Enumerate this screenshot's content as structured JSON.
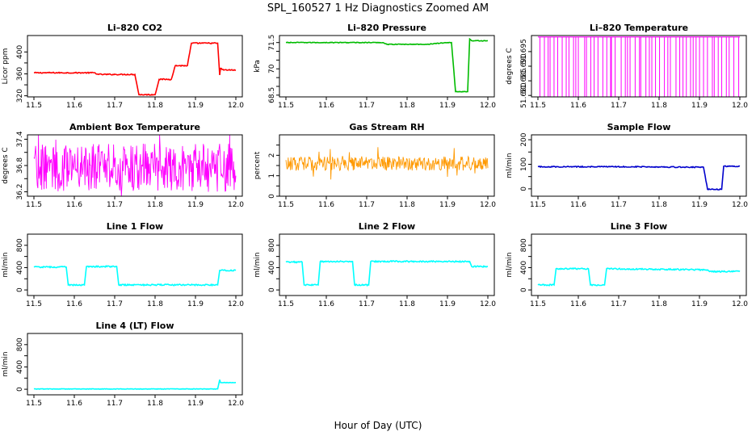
{
  "figure": {
    "title": "SPL_160527  1 Hz Diagnostics Zoomed AM",
    "xlabel": "Hour of Day (UTC)"
  },
  "chart_data": [
    {
      "type": "line",
      "title": "Li–820 CO2",
      "xlabel": "",
      "ylabel": "Licor ppm",
      "xlim": [
        11.5,
        12.0
      ],
      "ylim": [
        318,
        430
      ],
      "xticks": [
        "11.5",
        "11.6",
        "11.7",
        "11.8",
        "11.9",
        "12.0"
      ],
      "yticks": [
        320,
        360,
        400
      ],
      "yticks_minor": [
        340,
        380
      ],
      "color": "#ff0000",
      "noise": 1,
      "series": [
        {
          "x": [
            11.5,
            11.65,
            11.66,
            11.75,
            11.76,
            11.8,
            11.81,
            11.84,
            11.85,
            11.88,
            11.89,
            11.955,
            11.96,
            11.962,
            11.97,
            12.0
          ],
          "y": [
            362,
            362,
            359,
            359,
            322,
            322,
            350,
            350,
            375,
            375,
            416,
            416,
            358,
            370,
            367,
            367
          ]
        }
      ]
    },
    {
      "type": "line",
      "title": "Li–820 Pressure",
      "xlabel": "",
      "ylabel": "kPa",
      "xlim": [
        11.5,
        12.0
      ],
      "ylim": [
        68.4,
        71.9
      ],
      "xticks": [
        "11.5",
        "11.6",
        "11.7",
        "11.8",
        "11.9",
        "12.0"
      ],
      "yticks": [
        68.5,
        70.0,
        71.5
      ],
      "yticks_minor": [
        69.0,
        69.5,
        70.5,
        71.0
      ],
      "color": "#00bb00",
      "noise": 0.02,
      "series": [
        {
          "x": [
            11.5,
            11.74,
            11.75,
            11.85,
            11.9,
            11.91,
            11.92,
            11.95,
            11.955,
            11.96,
            12.0
          ],
          "y": [
            71.5,
            71.5,
            71.4,
            71.4,
            71.5,
            71.5,
            68.7,
            68.7,
            71.7,
            71.6,
            71.6
          ]
        }
      ]
    },
    {
      "type": "line",
      "title": "Li–820 Temperature",
      "xlabel": "",
      "ylabel": "degrees C",
      "xlim": [
        11.5,
        12.0
      ],
      "ylim": [
        51.6795,
        51.7005
      ],
      "xticks": [
        "11.5",
        "11.6",
        "11.7",
        "11.8",
        "11.9",
        "12.0"
      ],
      "yticks": [
        51.68,
        51.685,
        51.69,
        51.695
      ],
      "yticks_minor": [],
      "color": "#ff00ff",
      "pattern": "spikes",
      "base": 51.7,
      "low": 51.6795,
      "count": 55
    },
    {
      "type": "line",
      "title": "Ambient Box Temperature",
      "xlabel": "",
      "ylabel": "degrees C",
      "xlim": [
        11.5,
        12.0
      ],
      "ylim": [
        36.1,
        37.5
      ],
      "xticks": [
        "11.5",
        "11.6",
        "11.7",
        "11.8",
        "11.9",
        "12.0"
      ],
      "yticks": [
        36.2,
        36.8,
        37.4
      ],
      "yticks_minor": [
        36.5,
        37.1
      ],
      "color": "#ff00ff",
      "pattern": "band",
      "center": 36.75,
      "spread": 0.55
    },
    {
      "type": "line",
      "title": "Gas Stream RH",
      "xlabel": "",
      "ylabel": "percent",
      "xlim": [
        11.5,
        12.0
      ],
      "ylim": [
        0,
        3
      ],
      "xticks": [
        "11.5",
        "11.6",
        "11.7",
        "11.8",
        "11.9",
        "12.0"
      ],
      "yticks": [
        0.0,
        1.0,
        2.0
      ],
      "yticks_minor": [
        0.5,
        1.5,
        2.5
      ],
      "color": "#ff9900",
      "pattern": "band",
      "center": 1.6,
      "spread": 0.35
    },
    {
      "type": "line",
      "title": "Sample Flow",
      "xlabel": "",
      "ylabel": "ml/min",
      "xlim": [
        11.5,
        12.0
      ],
      "ylim": [
        -30,
        220
      ],
      "xticks": [
        "11.5",
        "11.6",
        "11.7",
        "11.8",
        "11.9",
        "12.0"
      ],
      "yticks": [
        0,
        100,
        200
      ],
      "yticks_minor": [
        50,
        150
      ],
      "color": "#0000cc",
      "noise": 2,
      "series": [
        {
          "x": [
            11.5,
            11.75,
            11.9,
            11.91,
            11.92,
            11.955,
            11.96,
            12.0
          ],
          "y": [
            90,
            90,
            88,
            88,
            -2,
            -2,
            92,
            92
          ]
        }
      ]
    },
    {
      "type": "line",
      "title": "Line 1 Flow",
      "xlabel": "",
      "ylabel": "ml/min",
      "xlim": [
        11.5,
        12.0
      ],
      "ylim": [
        -100,
        1000
      ],
      "xticks": [
        "11.5",
        "11.6",
        "11.7",
        "11.8",
        "11.9",
        "12.0"
      ],
      "yticks": [
        0,
        400,
        800
      ],
      "yticks_minor": [
        200,
        600
      ],
      "color": "#00ffff",
      "noise": 12,
      "series": [
        {
          "x": [
            11.5,
            11.58,
            11.585,
            11.625,
            11.63,
            11.705,
            11.71,
            11.955,
            11.96,
            12.0
          ],
          "y": [
            410,
            410,
            90,
            90,
            420,
            420,
            90,
            90,
            350,
            350
          ]
        }
      ]
    },
    {
      "type": "line",
      "title": "Line 2 Flow",
      "xlabel": "",
      "ylabel": "ml/min",
      "xlim": [
        11.5,
        12.0
      ],
      "ylim": [
        -100,
        1000
      ],
      "xticks": [
        "11.5",
        "11.6",
        "11.7",
        "11.8",
        "11.9",
        "12.0"
      ],
      "yticks": [
        0,
        400,
        800
      ],
      "yticks_minor": [
        200,
        600
      ],
      "color": "#00ffff",
      "noise": 12,
      "series": [
        {
          "x": [
            11.5,
            11.54,
            11.545,
            11.58,
            11.585,
            11.665,
            11.67,
            11.705,
            11.71,
            11.955,
            11.96,
            12.0
          ],
          "y": [
            500,
            500,
            90,
            90,
            510,
            510,
            90,
            90,
            510,
            510,
            420,
            420
          ]
        }
      ]
    },
    {
      "type": "line",
      "title": "Line 3 Flow",
      "xlabel": "",
      "ylabel": "ml/min",
      "xlim": [
        11.5,
        12.0
      ],
      "ylim": [
        -100,
        1000
      ],
      "xticks": [
        "11.5",
        "11.6",
        "11.7",
        "11.8",
        "11.9",
        "12.0"
      ],
      "yticks": [
        0,
        400,
        800
      ],
      "yticks_minor": [
        200,
        600
      ],
      "color": "#00ffff",
      "noise": 12,
      "series": [
        {
          "x": [
            11.5,
            11.54,
            11.545,
            11.625,
            11.63,
            11.665,
            11.67,
            11.92,
            11.925,
            12.0
          ],
          "y": [
            90,
            90,
            380,
            380,
            90,
            90,
            380,
            360,
            330,
            330
          ]
        }
      ]
    },
    {
      "type": "line",
      "title": "Line 4 (LT) Flow",
      "xlabel": "",
      "ylabel": "ml/min",
      "xlim": [
        11.5,
        12.0
      ],
      "ylim": [
        -100,
        1000
      ],
      "xticks": [
        "11.5",
        "11.6",
        "11.7",
        "11.8",
        "11.9",
        "12.0"
      ],
      "yticks": [
        0,
        400,
        800
      ],
      "yticks_minor": [
        200,
        600
      ],
      "color": "#00ffff",
      "noise": 4,
      "series": [
        {
          "x": [
            11.5,
            11.955,
            11.96,
            11.962,
            11.97,
            12.0
          ],
          "y": [
            5,
            5,
            170,
            120,
            120,
            120
          ]
        }
      ]
    }
  ]
}
